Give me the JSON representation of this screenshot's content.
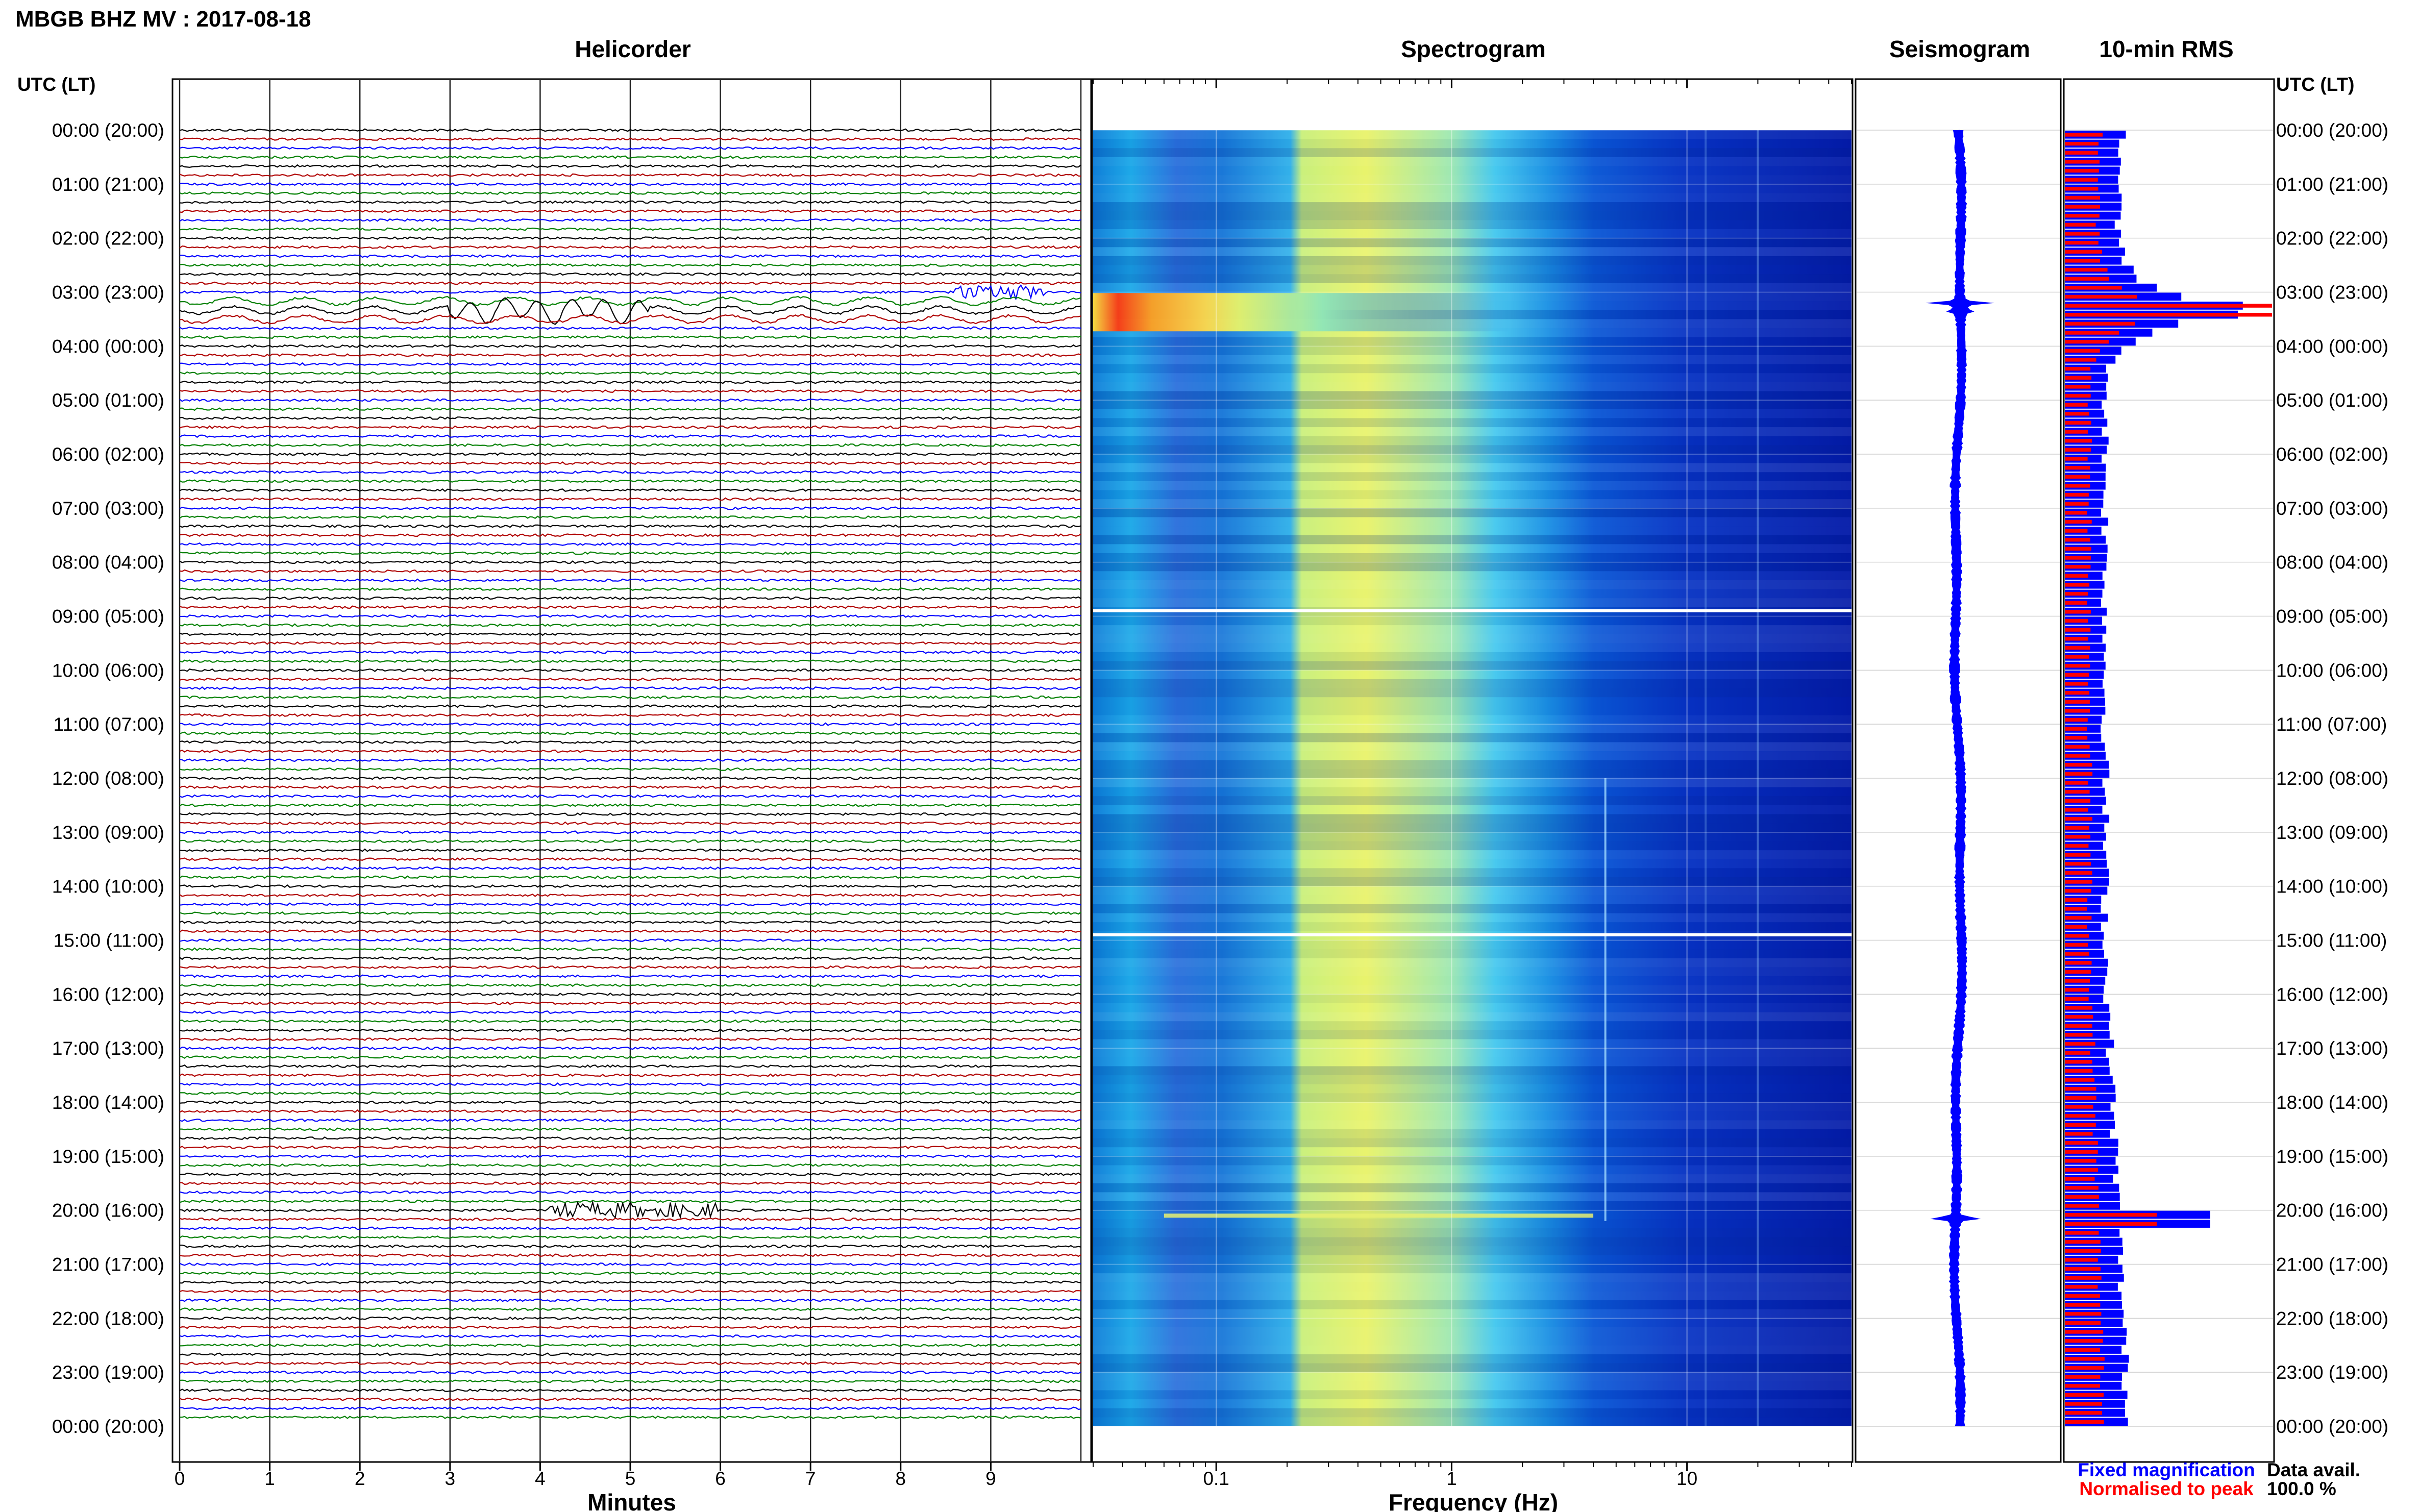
{
  "header": {
    "title": "MBGB BHZ MV : 2017-08-18",
    "utc_label_left": "UTC (LT)",
    "utc_label_right": "UTC (LT)"
  },
  "panels": {
    "helicorder": "Helicorder",
    "spectrogram": "Spectrogram",
    "seismogram": "Seismogram",
    "rms": "10-min RMS"
  },
  "time_labels": [
    "00:00 (20:00)",
    "01:00 (21:00)",
    "02:00 (22:00)",
    "03:00 (23:00)",
    "04:00 (00:00)",
    "05:00 (01:00)",
    "06:00 (02:00)",
    "07:00 (03:00)",
    "08:00 (04:00)",
    "09:00 (05:00)",
    "10:00 (06:00)",
    "11:00 (07:00)",
    "12:00 (08:00)",
    "13:00 (09:00)",
    "14:00 (10:00)",
    "15:00 (11:00)",
    "16:00 (12:00)",
    "17:00 (13:00)",
    "18:00 (14:00)",
    "19:00 (15:00)",
    "20:00 (16:00)",
    "21:00 (17:00)",
    "22:00 (18:00)",
    "23:00 (19:00)",
    "00:00 (20:00)"
  ],
  "legend": {
    "fixed": "Fixed magnification",
    "normalised": "Normalised to peak",
    "fixed_color": "#0000ff",
    "normalised_color": "#ff0000"
  },
  "data_avail": {
    "label": "Data avail.",
    "value": "100.0 %"
  },
  "chart_data": [
    {
      "type": "line",
      "name": "helicorder",
      "xlabel": "Minutes",
      "x_ticks": [
        "0",
        "1",
        "2",
        "3",
        "4",
        "5",
        "6",
        "7",
        "8",
        "9"
      ],
      "xlim": [
        0,
        10
      ],
      "rows_per_hour": 6,
      "hours": 24,
      "trace_colors": [
        "#000000",
        "#b00000",
        "#0000ff",
        "#008000"
      ],
      "events": [
        {
          "hour": 3,
          "row": 2,
          "start_min": 3.0,
          "end_min": 5.2,
          "kind": "long-period"
        },
        {
          "hour": 3,
          "row": 0,
          "start_min": 8.6,
          "end_min": 9.6,
          "kind": "burst"
        },
        {
          "hour": 20,
          "row": 0,
          "start_min": 4.1,
          "end_min": 6.0,
          "kind": "burst"
        }
      ]
    },
    {
      "type": "heatmap",
      "name": "spectrogram",
      "xlabel": "Frequency (Hz)",
      "x_scale": "log",
      "x_ticks": [
        "0.1",
        "1",
        "10"
      ],
      "xlim": [
        0.03,
        50
      ],
      "colormap": "jet",
      "gaps_hour": [
        8.9,
        14.9
      ],
      "event_hours": [
        3.3,
        20.1
      ]
    },
    {
      "type": "line",
      "name": "seismogram",
      "events_hour": [
        3.2,
        20.15
      ]
    },
    {
      "type": "bar",
      "name": "10-min RMS",
      "orientation": "horizontal",
      "series": [
        {
          "name": "Fixed magnification",
          "color": "#0000ff"
        },
        {
          "name": "Normalised to peak",
          "color": "#ff0000"
        }
      ],
      "peak_hour": 3.33
    }
  ]
}
